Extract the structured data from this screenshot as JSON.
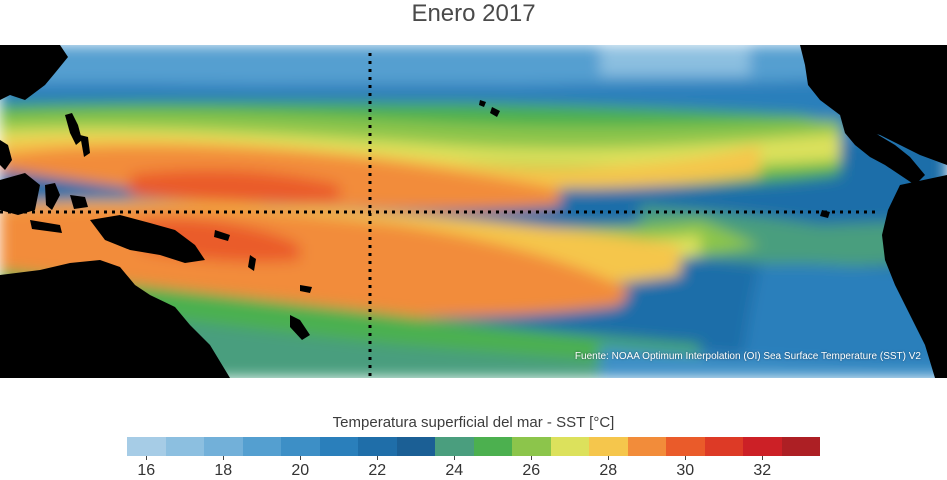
{
  "title": "Enero 2017",
  "source": "Fuente: NOAA Optimum Interpolation (OI) Sea Surface Temperature (SST) V2",
  "colorbar": {
    "title": "Temperatura superficial del mar - SST  [°C]",
    "tick_labels": [
      "16",
      "18",
      "20",
      "22",
      "24",
      "26",
      "28",
      "30",
      "32"
    ],
    "colors": [
      "#a6cce6",
      "#8cbfe0",
      "#72b0d9",
      "#549fd0",
      "#3d8fc6",
      "#2a7fbb",
      "#1f6ea9",
      "#1b5f95",
      "#4a9e7e",
      "#4cb04f",
      "#8cc54b",
      "#dce15c",
      "#f5c64c",
      "#f28c3a",
      "#ea5b2a",
      "#dd3a26",
      "#cc2026",
      "#ad1f24"
    ]
  },
  "map": {
    "ocean_base_color": "#1f6ea9",
    "land_color": "#000000",
    "equator_line": "dotted",
    "dateline": "dotted"
  }
}
